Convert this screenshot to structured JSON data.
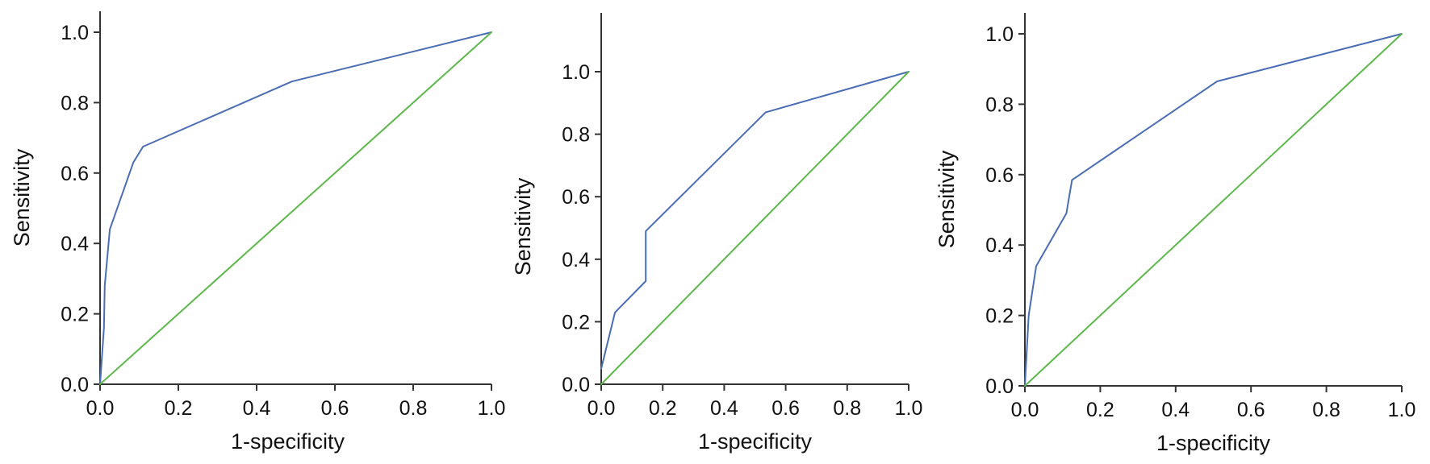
{
  "chart_data": [
    {
      "type": "line",
      "xlabel": "1-specificity",
      "ylabel": "Sensitivity",
      "xlim": [
        0,
        1
      ],
      "ylim": [
        0,
        1
      ],
      "xticks": [
        "0.0",
        "0.2",
        "0.4",
        "0.6",
        "0.8",
        "1.0"
      ],
      "yticks": [
        "0.0",
        "0.2",
        "0.4",
        "0.6",
        "0.8",
        "1.0"
      ],
      "grid": false,
      "series": [
        {
          "color": "#4a6db5",
          "x": [
            0.0,
            0.01,
            0.012,
            0.025,
            0.085,
            0.11,
            0.49,
            1.0
          ],
          "y": [
            0.0,
            0.16,
            0.28,
            0.44,
            0.63,
            0.675,
            0.86,
            1.0
          ]
        },
        {
          "color": "#5cb84a",
          "x": [
            0.0,
            1.0
          ],
          "y": [
            0.0,
            1.0
          ]
        }
      ]
    },
    {
      "type": "line",
      "xlabel": "1-specificity",
      "ylabel": "Sensitivity",
      "xlim": [
        0,
        1
      ],
      "ylim": [
        0,
        1.2
      ],
      "xticks": [
        "0.0",
        "0.2",
        "0.4",
        "0.6",
        "0.8",
        "1.0"
      ],
      "yticks": [
        "0.0",
        "0.2",
        "0.4",
        "0.6",
        "0.8",
        "1.0"
      ],
      "grid": false,
      "series": [
        {
          "color": "#4a6db5",
          "x": [
            0.0,
            0.01,
            0.045,
            0.145,
            0.145,
            0.535,
            1.0
          ],
          "y": [
            0.05,
            0.09,
            0.23,
            0.33,
            0.49,
            0.87,
            1.0
          ]
        },
        {
          "color": "#5cb84a",
          "x": [
            0.0,
            1.0
          ],
          "y": [
            0.0,
            1.0
          ]
        }
      ]
    },
    {
      "type": "line",
      "xlabel": "1-specificity",
      "ylabel": "Sensitivity",
      "xlim": [
        0,
        1
      ],
      "ylim": [
        0,
        1
      ],
      "xticks": [
        "0.0",
        "0.2",
        "0.4",
        "0.6",
        "0.8",
        "1.0"
      ],
      "yticks": [
        "0.0",
        "0.2",
        "0.4",
        "0.6",
        "0.8",
        "1.0"
      ],
      "grid": false,
      "series": [
        {
          "color": "#4a6db5",
          "x": [
            0.0,
            0.01,
            0.03,
            0.11,
            0.125,
            0.51,
            1.0
          ],
          "y": [
            0.0,
            0.2,
            0.34,
            0.49,
            0.585,
            0.865,
            1.0
          ]
        },
        {
          "color": "#5cb84a",
          "x": [
            0.0,
            1.0
          ],
          "y": [
            0.0,
            1.0
          ]
        }
      ]
    }
  ]
}
